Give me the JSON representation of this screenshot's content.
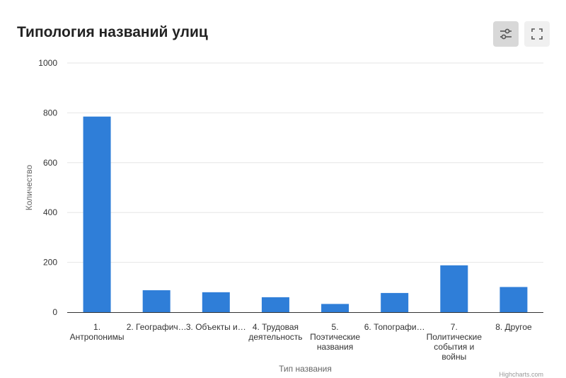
{
  "title": "Типология названий улиц",
  "toolbar": {
    "filter_icon": "sliders-icon",
    "fullscreen_icon": "fullscreen-icon"
  },
  "credits": "Highcharts.com",
  "chart_data": {
    "type": "bar",
    "xlabel": "Тип названия",
    "ylabel": "Количество",
    "ylim": [
      0,
      1000
    ],
    "yticks": [
      0,
      200,
      400,
      600,
      800,
      1000
    ],
    "grid": true,
    "color": "#2f7ed8",
    "categories": [
      [
        "1.",
        "Антропонимы"
      ],
      [
        "2. Географич…"
      ],
      [
        "3. Объекты и…"
      ],
      [
        "4. Трудовая",
        "деятельность"
      ],
      [
        "5.",
        "Поэтические",
        "названия"
      ],
      [
        "6. Топографи…"
      ],
      [
        "7.",
        "Политические",
        "события и",
        "войны"
      ],
      [
        "8. Другое"
      ]
    ],
    "values": [
      785,
      88,
      80,
      60,
      33,
      77,
      188,
      101
    ]
  }
}
